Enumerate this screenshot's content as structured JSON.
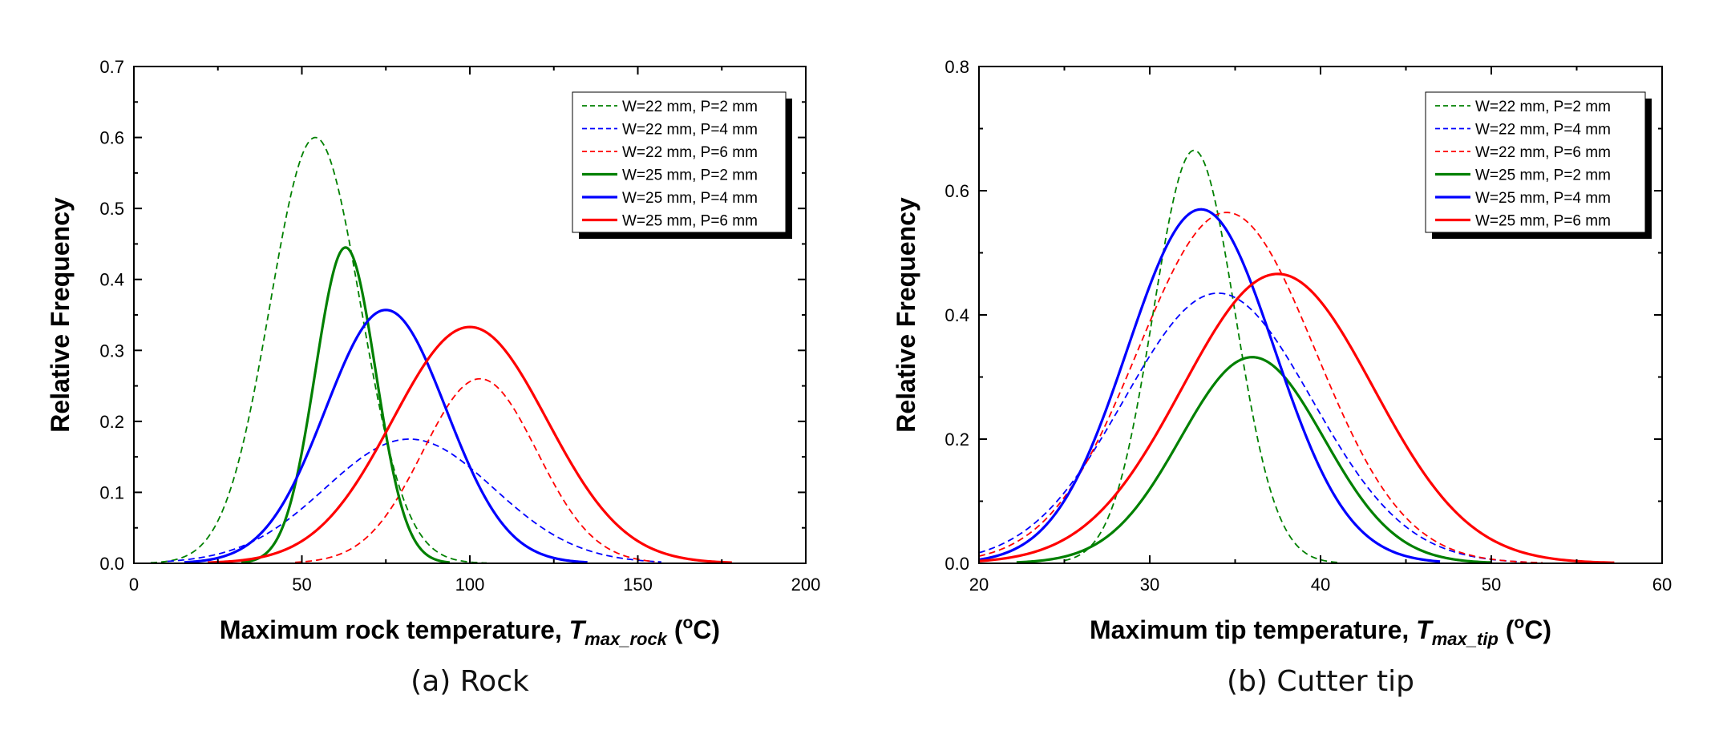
{
  "chart_data": [
    {
      "type": "line",
      "caption": "(a) Rock",
      "xlabel_main": "Maximum rock temperature, ",
      "xlabel_sym": "T",
      "xlabel_sub": "max_rock",
      "xlabel_unit_open": " (",
      "xlabel_unit_sup": "o",
      "xlabel_unit_close": "C)",
      "ylabel": "Relative Frequency",
      "xlim": [
        0,
        200
      ],
      "ylim": [
        0,
        0.7
      ],
      "xticks": [
        0,
        50,
        100,
        150,
        200
      ],
      "xtick_labels": [
        "0",
        "50",
        "100",
        "150",
        "200"
      ],
      "yticks": [
        0,
        0.1,
        0.2,
        0.3,
        0.4,
        0.5,
        0.6,
        0.7
      ],
      "ytick_labels": [
        "0.0",
        "0.1",
        "0.2",
        "0.3",
        "0.4",
        "0.5",
        "0.6",
        "0.7"
      ],
      "series": [
        {
          "name": "W=22 mm, P=2 mm",
          "color": "#008000",
          "dash": true,
          "peak_x": 54,
          "peak_y": 0.6,
          "sigma": 13.5,
          "x_range": [
            5,
            105
          ]
        },
        {
          "name": "W=22 mm, P=4 mm",
          "color": "#0000ff",
          "dash": true,
          "peak_x": 82,
          "peak_y": 0.175,
          "sigma": 25,
          "x_range": [
            10,
            157
          ]
        },
        {
          "name": "W=22 mm, P=6 mm",
          "color": "#ff0000",
          "dash": true,
          "peak_x": 103,
          "peak_y": 0.26,
          "sigma": 17,
          "x_range": [
            48,
            155
          ]
        },
        {
          "name": "W=25 mm, P=2 mm",
          "color": "#008000",
          "dash": false,
          "peak_x": 63,
          "peak_y": 0.445,
          "sigma": 9,
          "x_range": [
            32,
            94
          ]
        },
        {
          "name": "W=25 mm, P=4 mm",
          "color": "#0000ff",
          "dash": false,
          "peak_x": 75,
          "peak_y": 0.357,
          "sigma": 18,
          "x_range": [
            15,
            135
          ]
        },
        {
          "name": "W=25 mm, P=6 mm",
          "color": "#ff0000",
          "dash": false,
          "peak_x": 100,
          "peak_y": 0.333,
          "sigma": 23,
          "x_range": [
            22,
            178
          ]
        }
      ]
    },
    {
      "type": "line",
      "caption": "(b) Cutter tip",
      "xlabel_main": "Maximum tip temperature, ",
      "xlabel_sym": "T",
      "xlabel_sub": "max_tip",
      "xlabel_unit_open": " (",
      "xlabel_unit_sup": "o",
      "xlabel_unit_close": "C)",
      "ylabel": "Relative Frequency",
      "xlim": [
        20,
        60
      ],
      "ylim": [
        0,
        0.8
      ],
      "xticks": [
        20,
        30,
        40,
        50,
        60
      ],
      "xtick_labels": [
        "20",
        "30",
        "40",
        "50",
        "60"
      ],
      "yticks": [
        0,
        0.2,
        0.4,
        0.6,
        0.8
      ],
      "ytick_labels": [
        "0.0",
        "0.2",
        "0.4",
        "0.6",
        "0.8"
      ],
      "series": [
        {
          "name": "W=22 mm, P=2 mm",
          "color": "#008000",
          "dash": true,
          "peak_x": 32.6,
          "peak_y": 0.665,
          "sigma": 2.4,
          "x_range": [
            25,
            41
          ]
        },
        {
          "name": "W=22 mm, P=4 mm",
          "color": "#0000ff",
          "dash": true,
          "peak_x": 34,
          "peak_y": 0.435,
          "sigma": 5.5,
          "x_range": [
            20,
            52
          ]
        },
        {
          "name": "W=22 mm, P=6 mm",
          "color": "#ff0000",
          "dash": true,
          "peak_x": 34.5,
          "peak_y": 0.565,
          "sigma": 5.2,
          "x_range": [
            20,
            53
          ]
        },
        {
          "name": "W=25 mm, P=2 mm",
          "color": "#008000",
          "dash": false,
          "peak_x": 36,
          "peak_y": 0.332,
          "sigma": 4.2,
          "x_range": [
            22.2,
            50
          ]
        },
        {
          "name": "W=25 mm, P=4 mm",
          "color": "#0000ff",
          "dash": false,
          "peak_x": 33,
          "peak_y": 0.57,
          "sigma": 4.3,
          "x_range": [
            20,
            47
          ]
        },
        {
          "name": "W=25 mm, P=6 mm",
          "color": "#ff0000",
          "dash": false,
          "peak_x": 37.5,
          "peak_y": 0.466,
          "sigma": 5.6,
          "x_range": [
            20,
            57.2
          ]
        }
      ]
    }
  ]
}
